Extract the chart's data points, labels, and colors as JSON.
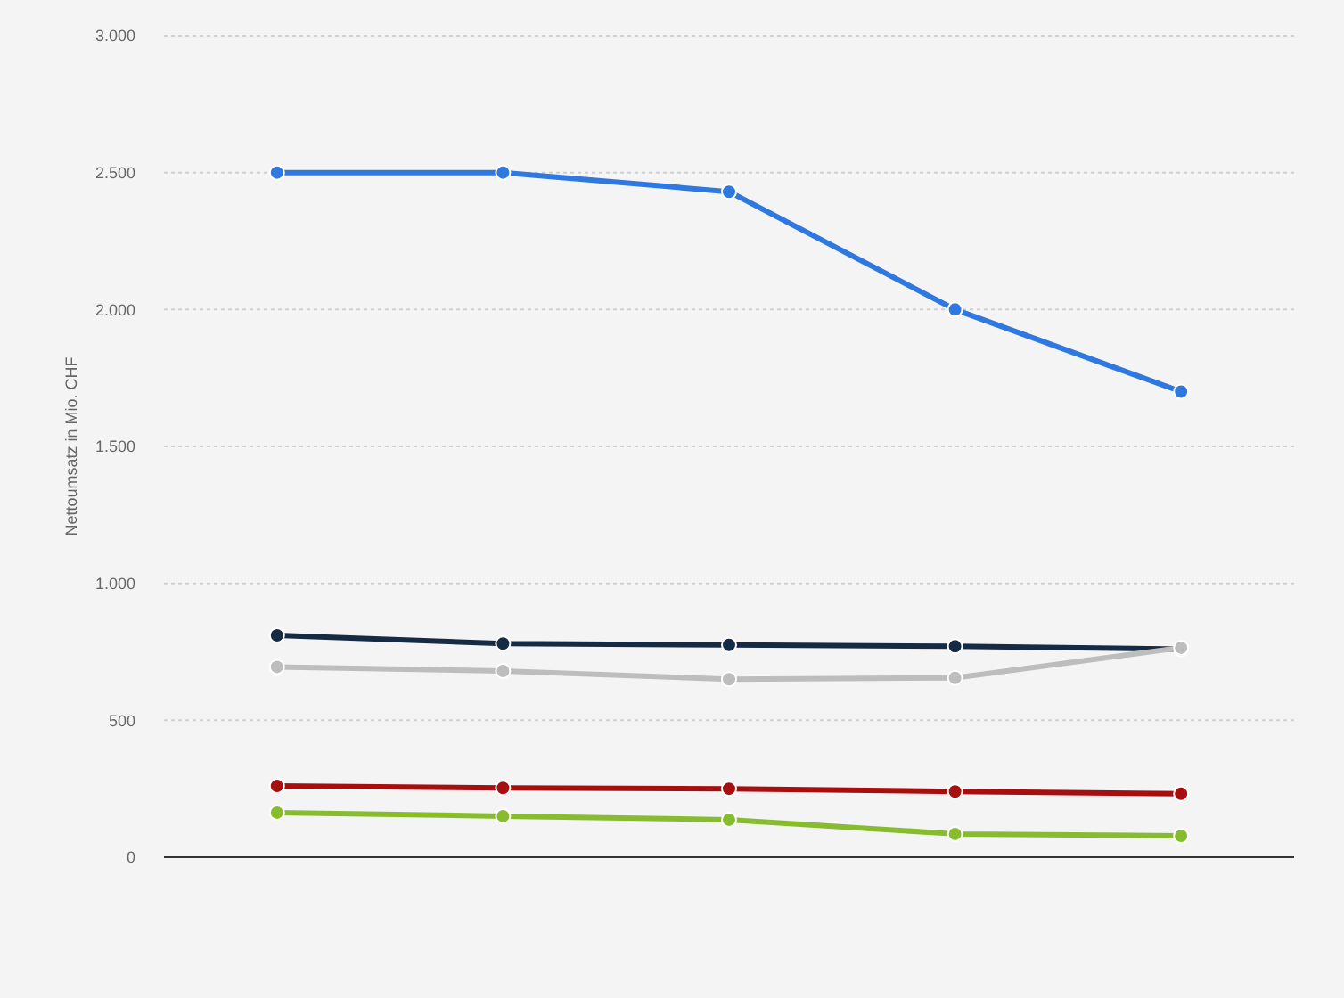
{
  "chart_data": {
    "type": "line",
    "ylabel": "Nettoumsatz in Mio. CHF",
    "categories": [
      null,
      null,
      null,
      null,
      null
    ],
    "series": [
      {
        "color": "#2e78e0",
        "values": [
          2500,
          2500,
          2430,
          2000,
          1700
        ]
      },
      {
        "color": "#152a44",
        "values": [
          810,
          780,
          775,
          770,
          760
        ]
      },
      {
        "color": "#bdbdbd",
        "values": [
          695,
          680,
          650,
          655,
          765
        ]
      },
      {
        "color": "#a60f10",
        "values": [
          260,
          253,
          250,
          240,
          232
        ]
      },
      {
        "color": "#86bc2e",
        "values": [
          163,
          150,
          137,
          85,
          78
        ]
      }
    ],
    "ylim": [
      0,
      3000
    ],
    "yticks": [
      0,
      500,
      {
        "value": 1000,
        "label": "1.000"
      },
      {
        "value": 1500,
        "label": "1.500"
      },
      {
        "value": 2000,
        "label": "2.000"
      },
      {
        "value": 2500,
        "label": "2.500"
      },
      {
        "value": 3000,
        "label": "3.000"
      }
    ],
    "grid": "y",
    "marker": "circle",
    "line_style": "solid"
  }
}
